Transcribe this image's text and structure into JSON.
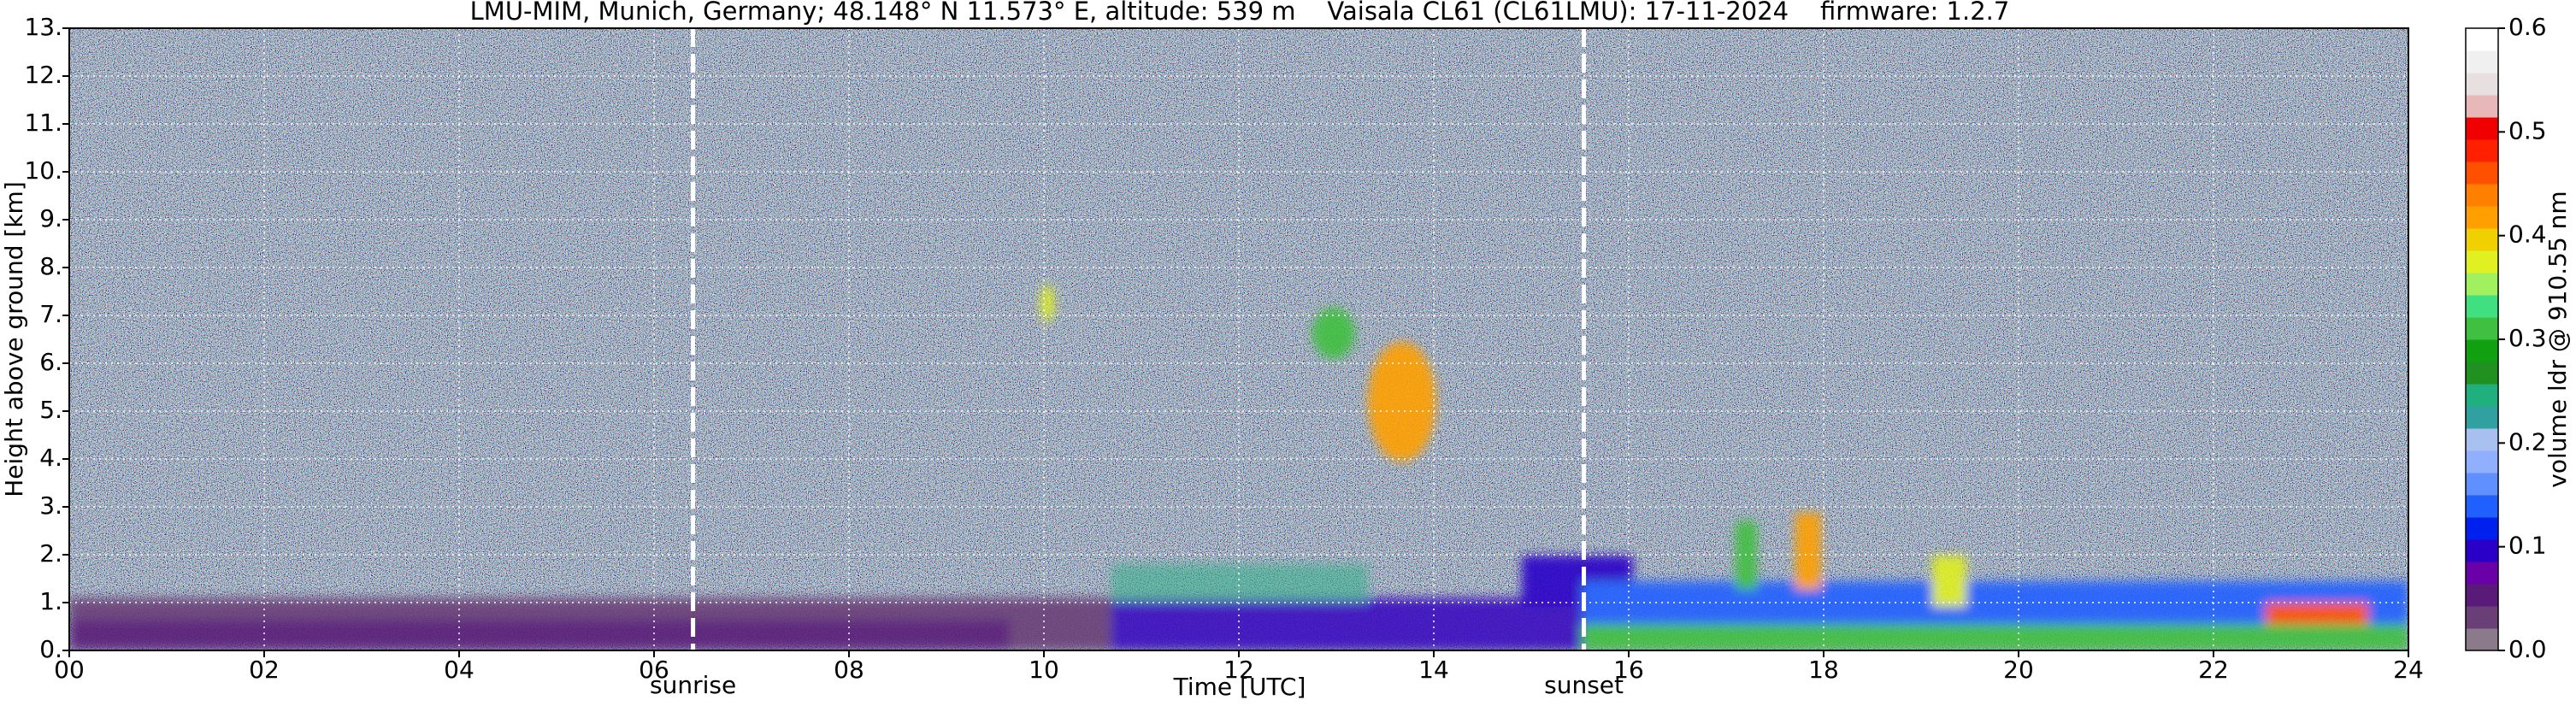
{
  "chart_data": {
    "type": "heatmap",
    "title": "LMU-MIM, Munich, Germany; 48.148° N 11.573° E, altitude: 539 m    Vaisala CL61 (CL61LMU): 17-11-2024    firmware: 1.2.7",
    "x_label": "Time [UTC]",
    "y_label": "Height above ground [km]",
    "xlim": [
      0,
      24
    ],
    "xticks": [
      {
        "value": 0,
        "label": "00"
      },
      {
        "value": 2,
        "label": "02"
      },
      {
        "value": 4,
        "label": "04"
      },
      {
        "value": 6,
        "label": "06"
      },
      {
        "value": 8,
        "label": "08"
      },
      10,
      12,
      14,
      16,
      18,
      20,
      22,
      24
    ],
    "ylim": [
      0,
      13
    ],
    "yticks": [
      {
        "value": 0,
        "label": "0."
      },
      {
        "value": 1,
        "label": "1."
      },
      {
        "value": 2,
        "label": "2."
      },
      {
        "value": 3,
        "label": "3."
      },
      {
        "value": 4,
        "label": "4."
      },
      {
        "value": 5,
        "label": "5."
      },
      {
        "value": 6,
        "label": "6."
      },
      {
        "value": 7,
        "label": "7."
      },
      {
        "value": 8,
        "label": "8."
      },
      {
        "value": 9,
        "label": "9."
      },
      {
        "value": 10,
        "label": "10."
      },
      {
        "value": 11,
        "label": "11."
      },
      {
        "value": 12,
        "label": "12."
      },
      {
        "value": 13,
        "label": "13."
      }
    ],
    "grid": true,
    "annotations": [
      {
        "text": "sunrise",
        "x": 6.4
      },
      {
        "text": "sunset",
        "x": 15.54
      }
    ],
    "colorbar": {
      "label": "volume ldr @ 910.55 nm",
      "lim": [
        0,
        0.6
      ],
      "ticks": [
        {
          "value": 0,
          "label": "0.0"
        },
        0.1,
        0.2,
        0.3,
        0.4,
        0.5,
        0.6
      ],
      "colors": [
        "#8a7a8a",
        "#6a3f78",
        "#5a1a78",
        "#6a00a8",
        "#2a00c8",
        "#0020f0",
        "#2060ff",
        "#6090ff",
        "#90b0ff",
        "#a8c0f0",
        "#30a0a0",
        "#20b080",
        "#209020",
        "#10a010",
        "#40c040",
        "#40e080",
        "#a0f060",
        "#e0f020",
        "#f0d000",
        "#ffa000",
        "#ff8000",
        "#ff5000",
        "#ff2000",
        "#f00000",
        "#e8b8b8",
        "#e8e0e0",
        "#f0f0f0",
        "#ffffff"
      ]
    }
  }
}
